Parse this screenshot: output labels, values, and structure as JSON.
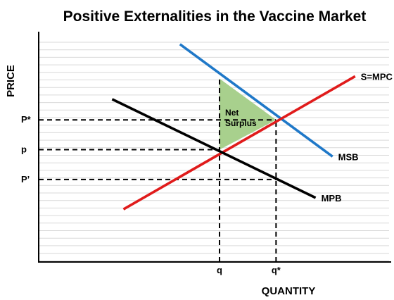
{
  "chart_data": {
    "type": "line",
    "title": "Positive Externalities in the Vaccine Market",
    "xlabel": "QUANTITY",
    "ylabel": "PRICE",
    "colors": {
      "background": "#ffffff",
      "grid": "#d9d9d9",
      "axes": "#000000",
      "MSB": "#1f78c8",
      "S=MPC": "#e01b1b",
      "MPB": "#000000",
      "net_surplus_fill": "#a8d08d"
    },
    "grid": true,
    "series": [
      {
        "name": "MSB",
        "colorKey": "MSB",
        "points": [
          [
            2.5,
            9.5
          ],
          [
            5.2,
            4.6
          ]
        ]
      },
      {
        "name": "S=MPC",
        "colorKey": "S=MPC",
        "points": [
          [
            1.5,
            2.3
          ],
          [
            5.6,
            8.1
          ]
        ]
      },
      {
        "name": "MPB",
        "colorKey": "MPB",
        "points": [
          [
            1.3,
            7.1
          ],
          [
            4.9,
            2.8
          ]
        ]
      }
    ],
    "x_ticks": [
      {
        "label": "q",
        "value": 3.2
      },
      {
        "label": "q*",
        "value": 4.2
      }
    ],
    "y_ticks": [
      {
        "label": "P*",
        "value": 6.2
      },
      {
        "label": "p",
        "value": 4.9
      },
      {
        "label": "P’",
        "value": 3.6
      }
    ],
    "reference_lines": [
      {
        "from": [
          0,
          6.2
        ],
        "to": [
          4.2,
          6.2
        ]
      },
      {
        "from": [
          0,
          4.9
        ],
        "to": [
          3.2,
          4.9
        ]
      },
      {
        "from": [
          0,
          3.6
        ],
        "to": [
          4.2,
          3.6
        ]
      },
      {
        "from": [
          3.2,
          0
        ],
        "to": [
          3.2,
          8.0
        ]
      },
      {
        "from": [
          4.2,
          0
        ],
        "to": [
          4.2,
          6.2
        ]
      }
    ],
    "regions": [
      {
        "label": "Net\nSurplus",
        "points": [
          [
            3.2,
            8.0
          ],
          [
            4.2,
            6.2
          ],
          [
            3.2,
            4.9
          ]
        ]
      }
    ]
  }
}
